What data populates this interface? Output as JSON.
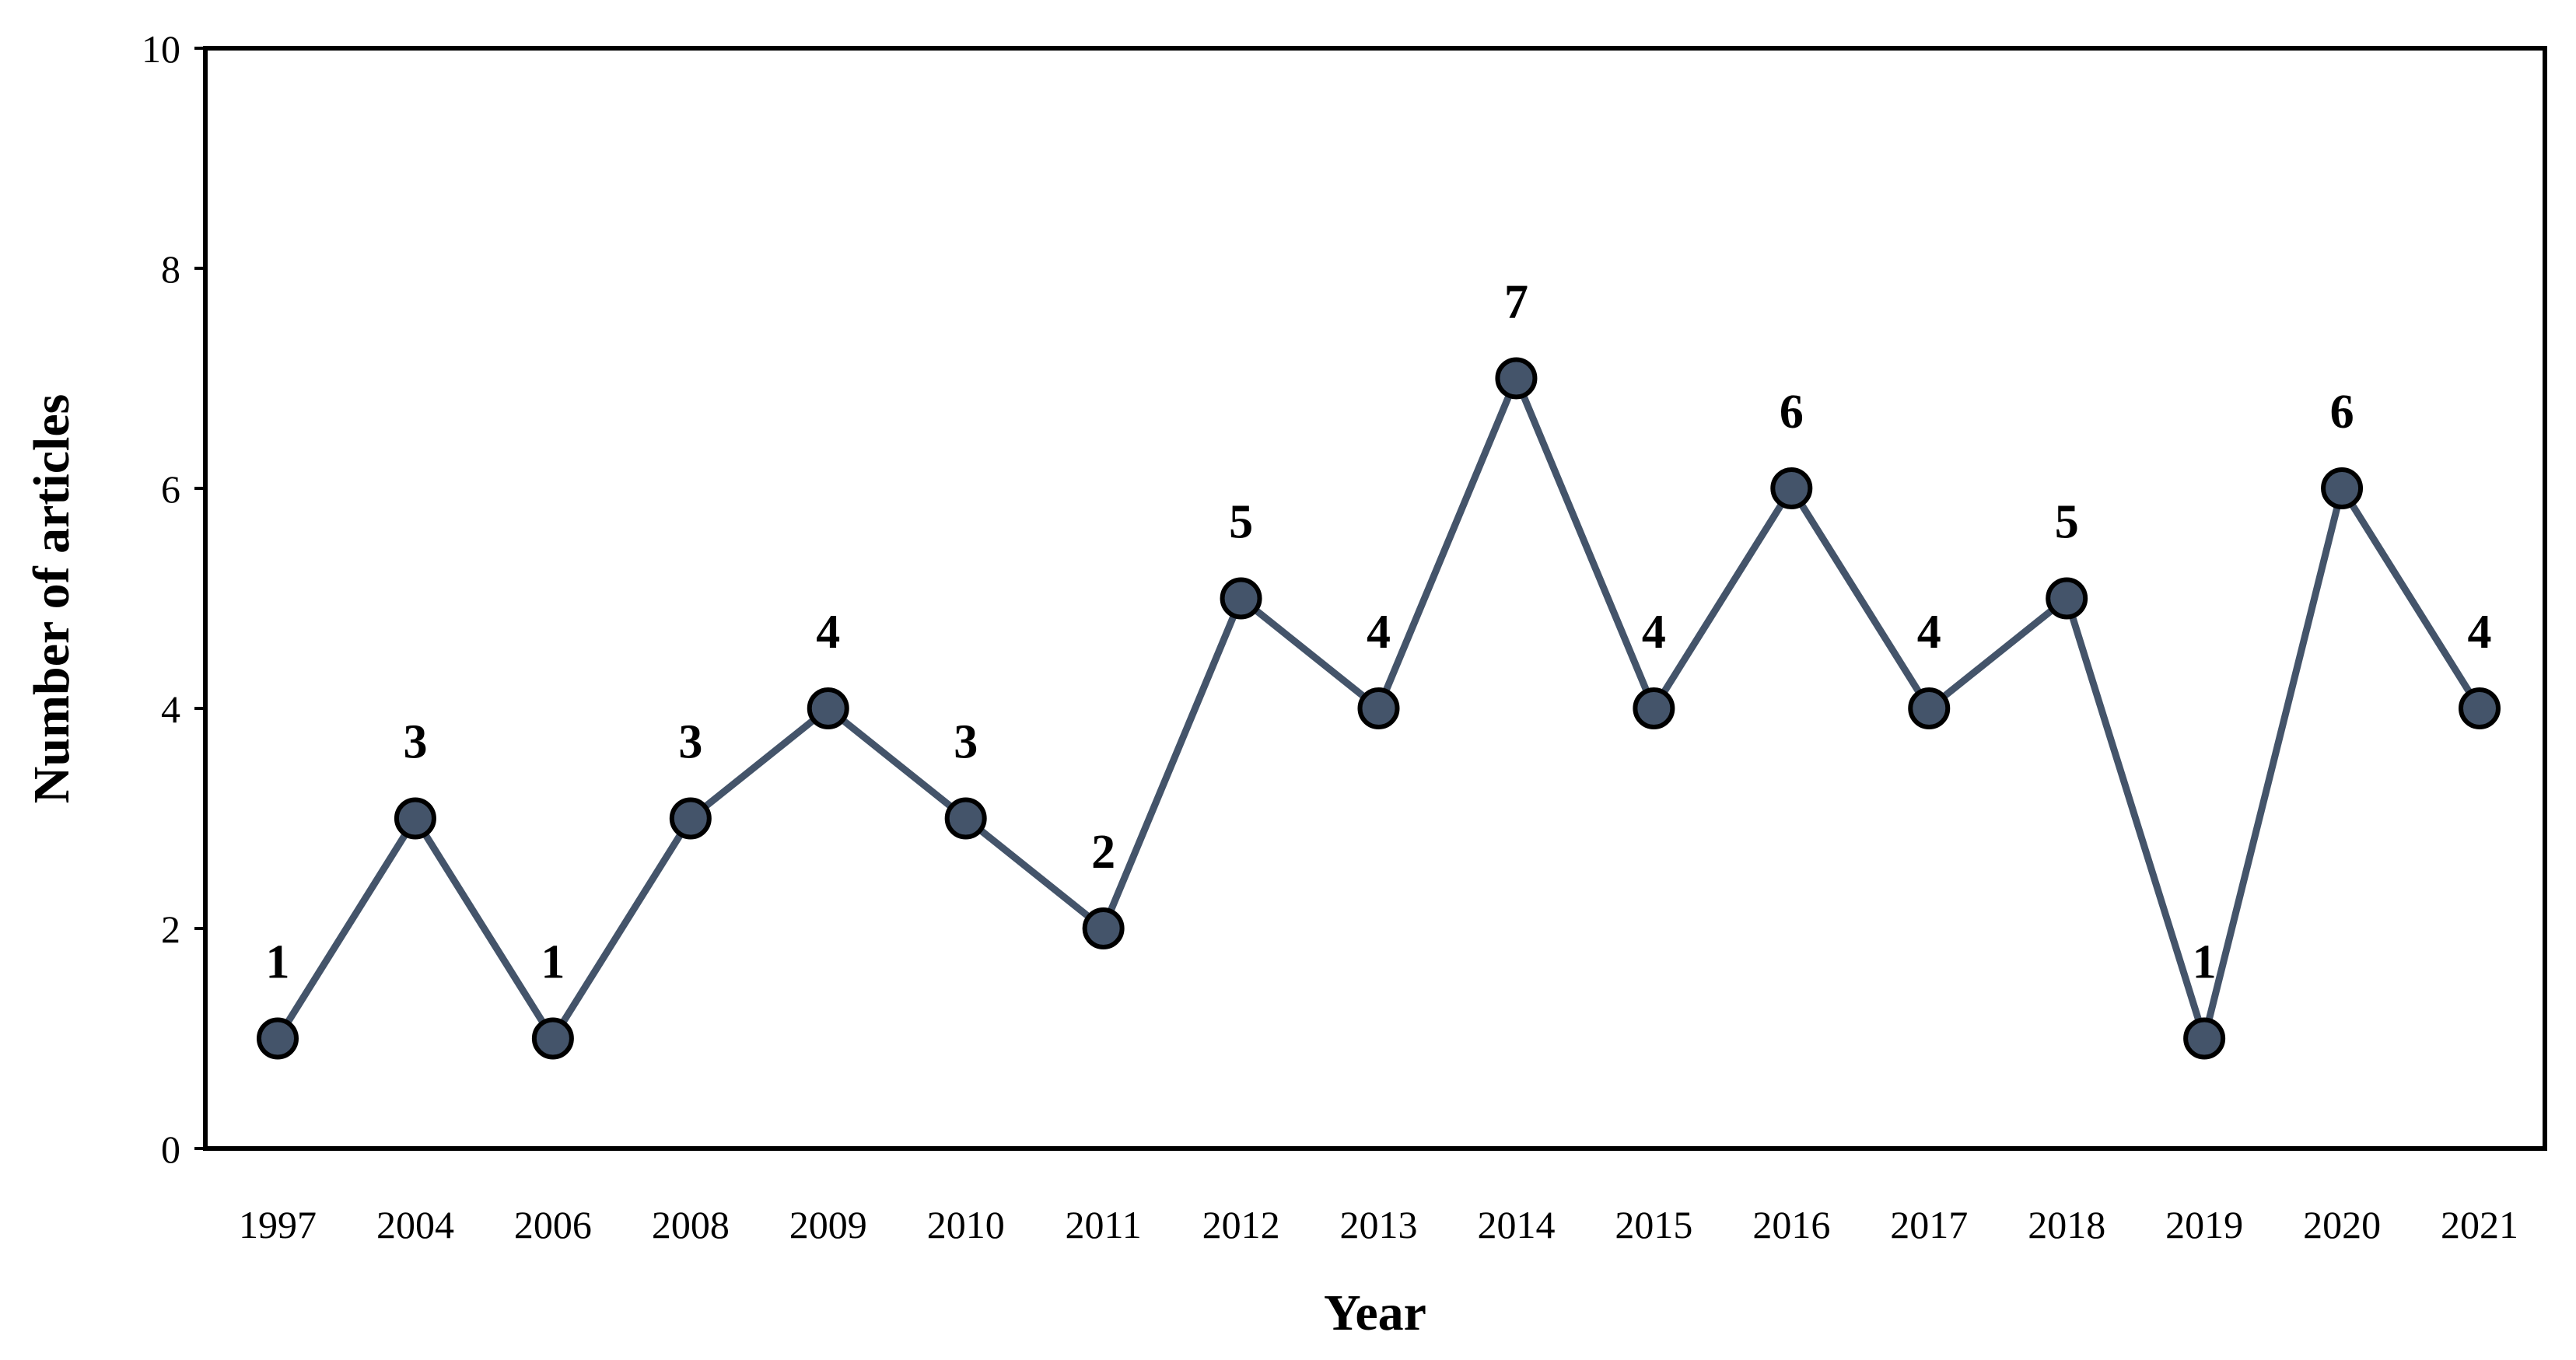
{
  "chart_data": {
    "type": "line",
    "title": "",
    "xlabel": "Year",
    "ylabel": "Number of articles",
    "categories": [
      "1997",
      "2004",
      "2006",
      "2008",
      "2009",
      "2010",
      "2011",
      "2012",
      "2013",
      "2014",
      "2015",
      "2016",
      "2017",
      "2018",
      "2019",
      "2020",
      "2021"
    ],
    "series": [
      {
        "values": [
          1,
          3,
          1,
          3,
          4,
          3,
          2,
          5,
          4,
          7,
          4,
          6,
          4,
          5,
          1,
          6,
          4
        ],
        "data_labels": [
          "1",
          "3",
          "1",
          "3",
          "4",
          "3",
          "2",
          "5",
          "4",
          "7",
          "4",
          "6",
          "4",
          "5",
          "1",
          "6",
          "4"
        ],
        "color": "#44546a",
        "marker_fill": "#44546a",
        "marker_edge": "#000000"
      }
    ],
    "ylim": [
      0,
      10
    ],
    "yticks": [
      "0",
      "2",
      "4",
      "6",
      "8",
      "10"
    ],
    "grid": false,
    "legend": "none"
  }
}
